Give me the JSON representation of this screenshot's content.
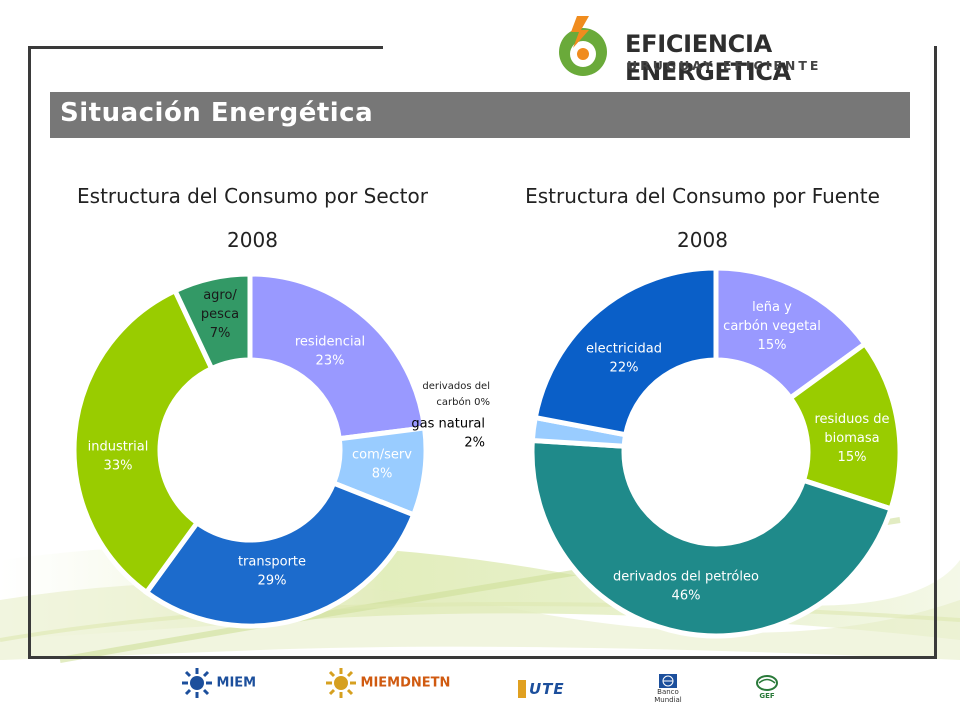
{
  "slide": {
    "title": "Situación Energética",
    "brand_title": "EFICIENCIA ENERGETICA",
    "brand_subtitle": "URUGUAY EFICIENTE"
  },
  "colors": {
    "title_bar": "#777777",
    "brand_green": "#6aaa3a",
    "brand_orange": "#f08c1e"
  },
  "chart_data": [
    {
      "type": "pie",
      "donut": true,
      "title": "Estructura del Consumo por Sector",
      "subtitle": "2008",
      "series": [
        {
          "name": "residencial",
          "value": 23,
          "label": "23%",
          "color": "#9999ff"
        },
        {
          "name": "com/serv",
          "value": 8,
          "label": "8%",
          "color": "#99ccff"
        },
        {
          "name": "transporte",
          "value": 29,
          "label": "29%",
          "color": "#1c6bcc"
        },
        {
          "name": "industrial",
          "value": 33,
          "label": "33%",
          "color": "#99cc00"
        },
        {
          "name": "agro/ pesca",
          "value": 7,
          "label": "7%",
          "color": "#339966"
        }
      ]
    },
    {
      "type": "pie",
      "donut": true,
      "title": "Estructura del Consumo por Fuente",
      "subtitle": "2008",
      "series": [
        {
          "name": "leña y carbón vegetal",
          "value": 15,
          "label": "15%",
          "color": "#9999ff"
        },
        {
          "name": "residuos de biomasa",
          "value": 15,
          "label": "15%",
          "color": "#99cc00"
        },
        {
          "name": "derivados del petróleo",
          "value": 46,
          "label": "46%",
          "color": "#1f8a8a"
        },
        {
          "name": "derivados del carbón",
          "value": 0,
          "label": "0%",
          "color": "#7fb0e0"
        },
        {
          "name": "gas natural",
          "value": 2,
          "label": "2%",
          "color": "#99ccff"
        },
        {
          "name": "electricidad",
          "value": 22,
          "label": "22%",
          "color": "#0a5fc8"
        }
      ]
    }
  ],
  "footer": {
    "logos": [
      "MIEM",
      "MIEMDNETN",
      "UTE",
      "Banco Mundial",
      "GEF"
    ]
  }
}
